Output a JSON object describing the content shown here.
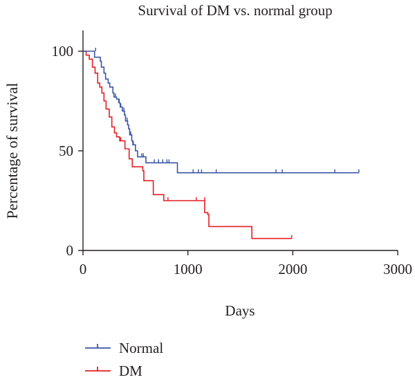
{
  "chart_data": {
    "type": "line",
    "subtype": "kaplan-meier-step",
    "title": "Survival of DM vs. normal group",
    "xlabel": "Days",
    "ylabel": "Percentage of survival",
    "xlim": [
      0,
      3000
    ],
    "ylim": [
      0,
      100
    ],
    "x_ticks": [
      "0",
      "1000",
      "2000",
      "3000"
    ],
    "y_ticks": [
      "0",
      "50",
      "100"
    ],
    "grid": false,
    "legend_position": "bottom-left",
    "series": [
      {
        "name": "Normal",
        "color": "#3a55a4",
        "steps": [
          [
            0,
            100
          ],
          [
            100,
            100
          ],
          [
            110,
            97
          ],
          [
            165,
            95
          ],
          [
            175,
            92
          ],
          [
            200,
            89
          ],
          [
            215,
            86
          ],
          [
            240,
            84
          ],
          [
            255,
            82
          ],
          [
            285,
            79
          ],
          [
            295,
            77
          ],
          [
            320,
            76
          ],
          [
            345,
            74
          ],
          [
            355,
            72
          ],
          [
            375,
            70
          ],
          [
            395,
            68
          ],
          [
            405,
            65
          ],
          [
            425,
            63
          ],
          [
            435,
            61
          ],
          [
            445,
            58
          ],
          [
            465,
            55
          ],
          [
            475,
            53
          ],
          [
            500,
            50
          ],
          [
            520,
            47
          ],
          [
            580,
            47
          ],
          [
            600,
            44
          ],
          [
            895,
            44
          ],
          [
            900,
            39
          ],
          [
            2630,
            39
          ]
        ],
        "censored": [
          [
            120,
            100
          ],
          [
            310,
            77
          ],
          [
            340,
            74
          ],
          [
            360,
            72
          ],
          [
            390,
            70
          ],
          [
            420,
            65
          ],
          [
            455,
            58
          ],
          [
            480,
            53
          ],
          [
            560,
            47
          ],
          [
            575,
            47
          ],
          [
            680,
            44
          ],
          [
            720,
            44
          ],
          [
            760,
            44
          ],
          [
            800,
            44
          ],
          [
            820,
            44
          ],
          [
            1050,
            39
          ],
          [
            1100,
            39
          ],
          [
            1130,
            39
          ],
          [
            1270,
            39
          ],
          [
            1840,
            39
          ],
          [
            1900,
            39
          ],
          [
            2400,
            39
          ],
          [
            2630,
            39
          ]
        ]
      },
      {
        "name": "DM",
        "color": "#e31e24",
        "steps": [
          [
            0,
            100
          ],
          [
            30,
            98
          ],
          [
            60,
            96
          ],
          [
            90,
            92
          ],
          [
            115,
            89
          ],
          [
            140,
            84
          ],
          [
            160,
            82
          ],
          [
            180,
            79
          ],
          [
            200,
            75
          ],
          [
            220,
            71
          ],
          [
            250,
            67
          ],
          [
            275,
            62
          ],
          [
            300,
            59
          ],
          [
            320,
            57
          ],
          [
            350,
            55
          ],
          [
            400,
            51
          ],
          [
            440,
            46
          ],
          [
            470,
            42
          ],
          [
            570,
            40
          ],
          [
            580,
            35
          ],
          [
            660,
            35
          ],
          [
            670,
            28
          ],
          [
            760,
            28
          ],
          [
            770,
            25
          ],
          [
            1150,
            25
          ],
          [
            1160,
            19
          ],
          [
            1190,
            18
          ],
          [
            1200,
            12
          ],
          [
            1600,
            12
          ],
          [
            1610,
            6
          ],
          [
            1990,
            6
          ]
        ],
        "censored": [
          [
            360,
            55
          ],
          [
            810,
            25
          ],
          [
            1080,
            25
          ],
          [
            1160,
            25
          ],
          [
            1990,
            6
          ]
        ]
      }
    ]
  }
}
